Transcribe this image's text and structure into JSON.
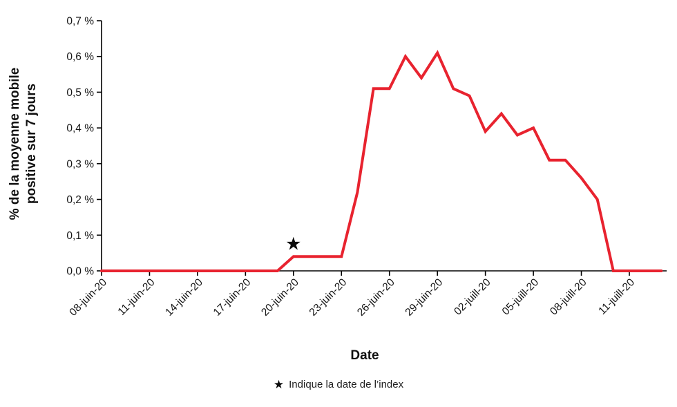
{
  "chart_data": {
    "type": "line",
    "title": "",
    "xlabel": "Date",
    "ylabel_lines": [
      "% de la moyenne mobile",
      "positive sur 7 jours"
    ],
    "ylim": [
      0,
      0.7
    ],
    "y_ticks": [
      0.0,
      0.1,
      0.2,
      0.3,
      0.4,
      0.5,
      0.6,
      0.7
    ],
    "y_tick_labels": [
      "0,0 %",
      "0,1 %",
      "0,2 %",
      "0,3 %",
      "0,4 %",
      "0,5 %",
      "0,6 %",
      "0,7 %"
    ],
    "x_tick_labels": [
      "08-juin-20",
      "11-juin-20",
      "14-juin-20",
      "17-juin-20",
      "20-juin-20",
      "23-juin-20",
      "26-juin-20",
      "29-juin-20",
      "02-juill-20",
      "05-juill-20",
      "08-juill-20",
      "11-juill-20"
    ],
    "x_tick_days": [
      0,
      3,
      6,
      9,
      12,
      15,
      18,
      21,
      24,
      27,
      30,
      33
    ],
    "dates": [
      "08-juin-20",
      "09-juin-20",
      "10-juin-20",
      "11-juin-20",
      "12-juin-20",
      "13-juin-20",
      "14-juin-20",
      "15-juin-20",
      "16-juin-20",
      "17-juin-20",
      "18-juin-20",
      "19-juin-20",
      "20-juin-20",
      "21-juin-20",
      "22-juin-20",
      "23-juin-20",
      "24-juin-20",
      "25-juin-20",
      "26-juin-20",
      "27-juin-20",
      "28-juin-20",
      "29-juin-20",
      "30-juin-20",
      "01-juill-20",
      "02-juill-20",
      "03-juill-20",
      "04-juill-20",
      "05-juill-20",
      "06-juill-20",
      "07-juill-20",
      "08-juill-20",
      "09-juill-20",
      "10-juill-20",
      "11-juill-20",
      "12-juill-20",
      "13-juill-20"
    ],
    "values": [
      0,
      0,
      0,
      0,
      0,
      0,
      0,
      0,
      0,
      0,
      0,
      0,
      0.04,
      0.04,
      0.04,
      0.04,
      0.22,
      0.51,
      0.51,
      0.6,
      0.54,
      0.61,
      0.51,
      0.49,
      0.39,
      0.44,
      0.38,
      0.4,
      0.31,
      0.31,
      0.26,
      0.2,
      0,
      0,
      0,
      0
    ],
    "line_color": "#e8232f",
    "axis_color": "#000000",
    "star": {
      "date": "20-juin-20",
      "day_index": 12,
      "value": 0.075
    },
    "legend": {
      "symbol": "★",
      "label": "Indique la date de l’index"
    },
    "grid": false,
    "legend_position": "bottom"
  }
}
